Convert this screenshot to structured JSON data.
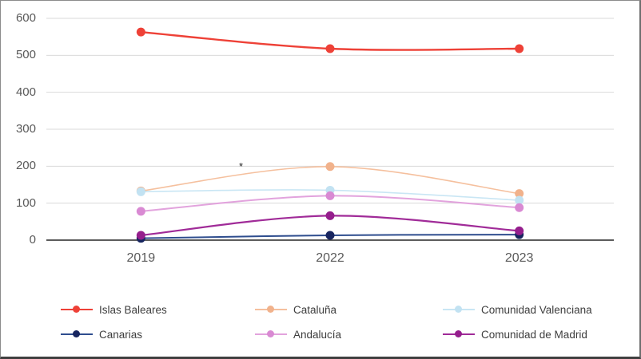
{
  "chart_data": {
    "type": "line",
    "title": "",
    "categories": [
      "2019",
      "2022",
      "2023"
    ],
    "series": [
      {
        "name": "Islas Baleares",
        "color": "#ee4137",
        "dot_color": "#ee4137",
        "stroke_width": 2.4,
        "values": [
          563,
          518,
          518
        ]
      },
      {
        "name": "Cataluña",
        "color": "#f5c09e",
        "dot_color": "#f1b28c",
        "stroke_width": 1.6,
        "values": [
          133,
          199,
          126
        ]
      },
      {
        "name": "Comunidad Valenciana",
        "color": "#c9e6f4",
        "dot_color": "#c2e2f2",
        "stroke_width": 1.6,
        "values": [
          131,
          135,
          108
        ]
      },
      {
        "name": "Canarias",
        "color": "#2e4d8e",
        "dot_color": "#17255f",
        "stroke_width": 2.0,
        "values": [
          5,
          13,
          15
        ]
      },
      {
        "name": "Andalucía",
        "color": "#e2a3dd",
        "dot_color": "#d98ad3",
        "stroke_width": 2.0,
        "values": [
          78,
          120,
          88
        ]
      },
      {
        "name": "Comunidad de Madrid",
        "color": "#a02b98",
        "dot_color": "#951e8d",
        "stroke_width": 2.2,
        "values": [
          13,
          66,
          25
        ]
      }
    ],
    "xlabel": "",
    "ylabel": "",
    "ylim": [
      0,
      600
    ],
    "ytick_step": 100,
    "ytick_labels": [
      "0",
      "100",
      "200",
      "300",
      "400",
      "500",
      "600"
    ],
    "grid": true,
    "smooth": true,
    "legend_position": "bottom",
    "annotations": [
      {
        "text": "*"
      }
    ]
  },
  "colors": {
    "background": "#ffffff",
    "gridline": "#d9d9d9",
    "axis_line": "#262626",
    "tick_text": "#595959",
    "legend_text": "#3d3d3d",
    "annotation_text": "#262626",
    "frame_border": "#8c8c8c"
  }
}
